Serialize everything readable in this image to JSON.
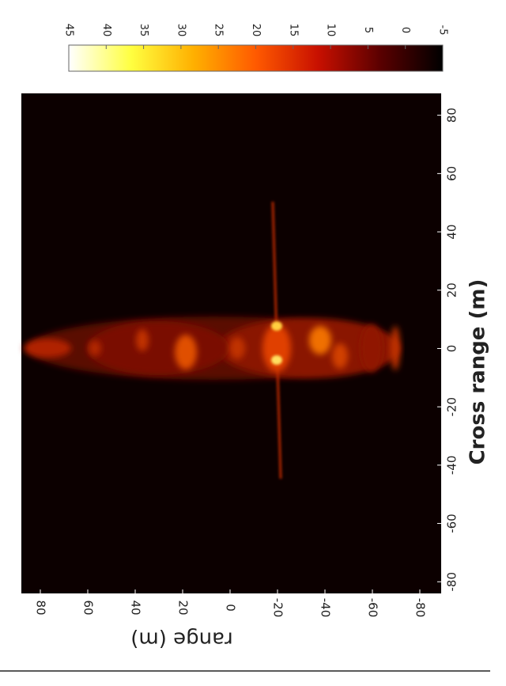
{
  "chart_data": {
    "type": "heatmap",
    "x_label": "Cross range (m)",
    "y_label": "range (m)",
    "xlim": [
      -84,
      87.5
    ],
    "xticks": [
      80,
      60,
      40,
      20,
      0,
      -20,
      -40,
      -60,
      -80
    ],
    "ylim": [
      -89,
      88
    ],
    "yticks": [
      80,
      60,
      40,
      20,
      0,
      -20,
      -40,
      -60,
      -80
    ],
    "colorbar": {
      "clim": [
        -5,
        45
      ],
      "ticks": [
        45,
        40,
        35,
        30,
        25,
        20,
        15,
        10,
        5,
        0,
        -5
      ],
      "colors": [
        "#000000",
        "#5a0000",
        "#c81000",
        "#ff5a00",
        "#ffb000",
        "#ffff40",
        "#ffffff"
      ]
    }
  }
}
